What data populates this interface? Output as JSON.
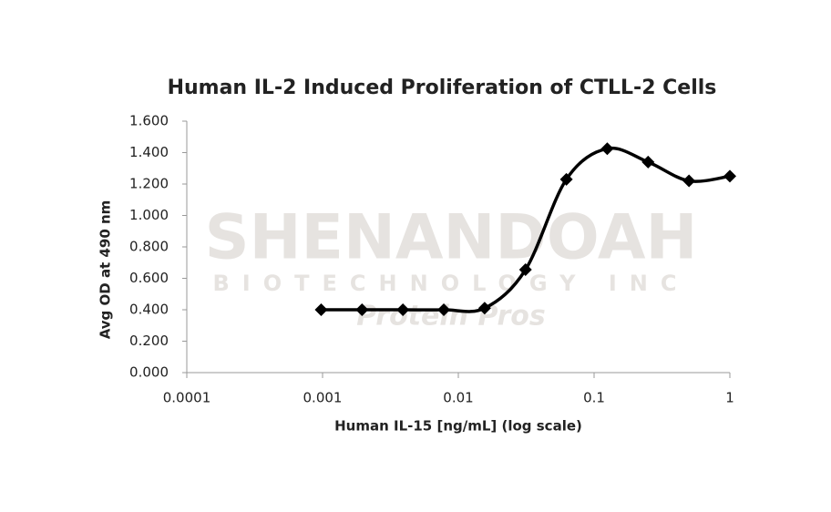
{
  "chart_data": {
    "type": "line",
    "title": "Human IL-2 Induced Proliferation of CTLL-2 Cells",
    "x_label": "Human IL-15 [ng/mL] (log scale)",
    "y_label": "Avg OD at 490 nm",
    "watermark": [
      "SHENANDOAH",
      "BIOTECHNOLOGY INC",
      "Protein Pros"
    ],
    "x": [
      0.0009765625,
      0.001953125,
      0.00390625,
      0.0078125,
      0.015625,
      0.03125,
      0.0625,
      0.125,
      0.25,
      0.5,
      1
    ],
    "series": [
      {
        "color": "#000000",
        "values": [
          0.4,
          0.4,
          0.4,
          0.4,
          0.41,
          0.655,
          1.23,
          1.425,
          1.34,
          1.22,
          1.25
        ]
      }
    ],
    "xscale": "log",
    "xlim": [
      0.0001,
      1
    ],
    "xticks": [
      0.0001,
      0.001,
      0.01,
      0.1,
      1
    ],
    "ylim": [
      0,
      1.6
    ],
    "yticks": [
      {
        "value": 0,
        "label": "0.000"
      },
      {
        "value": 0.2,
        "label": "0.200"
      },
      {
        "value": 0.4,
        "label": "0.400"
      },
      {
        "value": 0.6,
        "label": "0.600"
      },
      {
        "value": 0.8,
        "label": "0.800"
      },
      {
        "value": 1.0,
        "label": "1.000"
      },
      {
        "value": 1.2,
        "label": "1.200"
      },
      {
        "value": 1.4,
        "label": "1.400"
      },
      {
        "value": 1.6,
        "label": "1.600"
      }
    ],
    "grid": false
  }
}
